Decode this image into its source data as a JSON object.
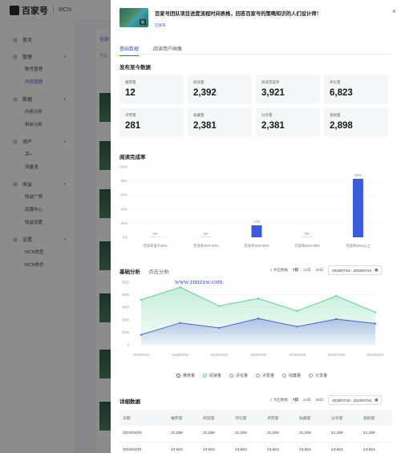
{
  "app": {
    "logo": "百家号",
    "section": "MCN"
  },
  "sidebar": {
    "groups": [
      {
        "label": "首页",
        "items": []
      },
      {
        "label": "管理",
        "items": [
          {
            "label": "账号管理",
            "active": false
          },
          {
            "label": "内容管理",
            "active": true
          }
        ]
      },
      {
        "label": "数据",
        "items": [
          {
            "label": "内容分析",
            "active": false
          },
          {
            "label": "粉丝分析",
            "active": false
          }
        ]
      },
      {
        "label": "资产",
        "items": [
          {
            "label": "百+",
            "active": false
          },
          {
            "label": "流量池",
            "active": false
          }
        ]
      },
      {
        "label": "收益",
        "items": [
          {
            "label": "收益广场",
            "active": false
          },
          {
            "label": "招募中心",
            "active": false
          },
          {
            "label": "收益设置",
            "active": false
          }
        ]
      },
      {
        "label": "设置",
        "items": [
          {
            "label": "MCN类型",
            "active": false
          },
          {
            "label": "MCN角色",
            "active": false
          }
        ]
      }
    ]
  },
  "main": {
    "tab": "全部",
    "sub": "作品"
  },
  "drawer": {
    "title": "百家号团队项目进度流程时间表格，回答百家号的策略知识的人们设计师！",
    "tag": "已发布",
    "cover_badge": "图",
    "close": "×",
    "tabs": [
      {
        "label": "基础数据",
        "active": true
      },
      {
        "label": "阅读用户画像",
        "active": false
      }
    ],
    "stats_title": "发布至今数据",
    "stats": [
      {
        "label": "推荐量",
        "value": "12"
      },
      {
        "label": "阅读量",
        "value": "2,392"
      },
      {
        "label": "阅读完成率",
        "value": "3,921"
      },
      {
        "label": "评论量",
        "value": "6,823"
      },
      {
        "label": "点赞量",
        "value": "281"
      },
      {
        "label": "收藏量",
        "value": "2,381"
      },
      {
        "label": "分享量",
        "value": "2,381"
      },
      {
        "label": "涨粉量",
        "value": "2,898"
      }
    ],
    "completion_title": "阅读完成率",
    "basic_title": "基础分析",
    "basic_tab2": "点击分析",
    "controls": {
      "export": "导出数据",
      "d7": "7日",
      "d14": "14日",
      "d30": "30日",
      "range": "2019/07/18 - 2019/07/24"
    },
    "legend": [
      "推荐量",
      "阅读量",
      "评论量",
      "点赞量",
      "收藏量",
      "分享量"
    ],
    "detail_title": "详细数据",
    "table": {
      "headers": [
        "日期",
        "推荐量",
        "阅读量",
        "评论量",
        "点赞量",
        "收藏量",
        "分享量",
        "涨粉量"
      ],
      "rows": [
        [
          "2019/04/01",
          "31,289",
          "31,289",
          "31,289",
          "31,289",
          "31,289",
          "31,289",
          "31,289"
        ],
        [
          "2019/04/01",
          "43,563",
          "43,563",
          "43,563",
          "43,563",
          "43,563",
          "43,563",
          "43,563"
        ]
      ]
    }
  },
  "watermark": "www.zmtzxw.com",
  "chart_data": [
    {
      "type": "bar",
      "title": "阅读完成率",
      "categories": [
        "完成率低于20%",
        "完成率20%-40%",
        "完成率40%-60%",
        "完成率60%-80%",
        "完成率80%以上"
      ],
      "values": [
        0,
        0,
        17,
        0,
        83
      ],
      "value_labels": [
        "0%",
        "0%",
        "17%",
        "0%",
        "83%"
      ],
      "ylim": [
        0,
        100
      ],
      "yticks": [
        "0%",
        "20%",
        "40%",
        "60%",
        "80%",
        "100%"
      ],
      "color": "#3b5bdb"
    },
    {
      "type": "area",
      "title": "基础分析",
      "x": [
        "2019/04/01",
        "2019/04/02",
        "2019/04/03",
        "2019/04/04",
        "2019/04/05",
        "2019/04/06",
        "2019/04/07"
      ],
      "ylim": [
        0,
        5000
      ],
      "yticks": [
        "0",
        "1000",
        "2000",
        "3000",
        "4000",
        "5000"
      ],
      "series": [
        {
          "name": "阅读量",
          "color": "#5ccf9a",
          "values": [
            3600,
            4600,
            3100,
            3700,
            2700,
            3900,
            2600
          ]
        },
        {
          "name": "推荐量",
          "color": "#4a63d6",
          "values": [
            800,
            1750,
            1350,
            2100,
            1450,
            2050,
            1700
          ]
        }
      ]
    }
  ]
}
